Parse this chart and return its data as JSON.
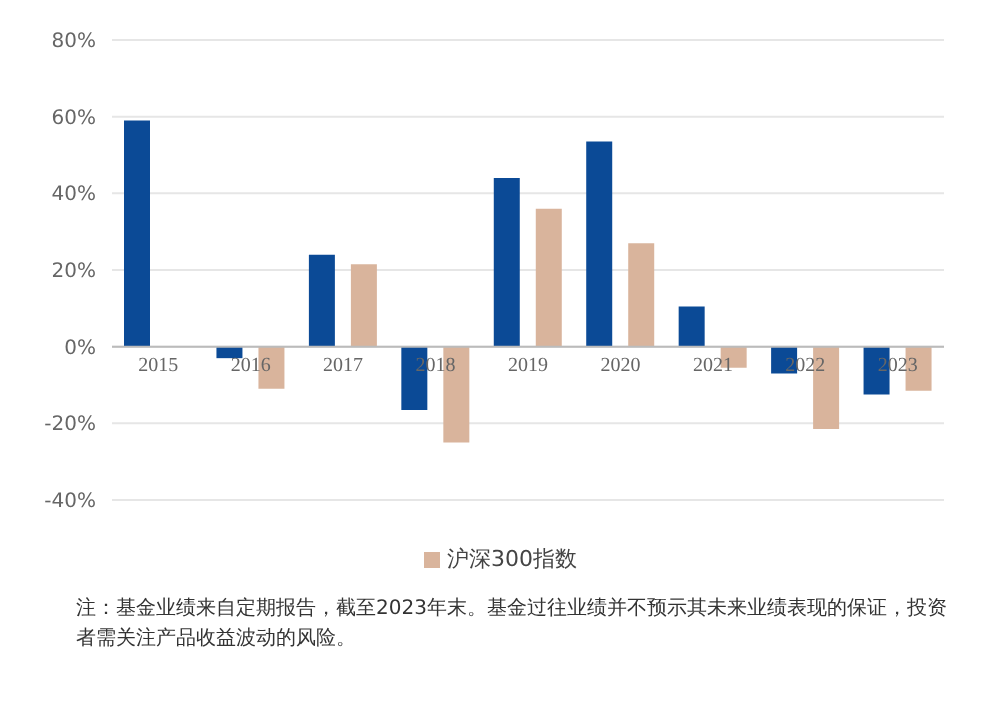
{
  "chart_data": {
    "type": "bar",
    "categories": [
      "2015",
      "2016",
      "2017",
      "2018",
      "2019",
      "2020",
      "2021",
      "2022",
      "2023"
    ],
    "series": [
      {
        "color": "#0b4a96",
        "values": [
          59,
          -3,
          24,
          -16.5,
          44,
          53.5,
          10.5,
          -7,
          -12.5
        ]
      },
      {
        "name": "沪深300指数",
        "color": "#d9b49c",
        "values": [
          null,
          -11,
          21.5,
          -25,
          36,
          27,
          -5.5,
          -21.5,
          -11.5
        ]
      }
    ],
    "ylim": [
      -40,
      80
    ],
    "yticks": [
      {
        "value": -40,
        "label": "-40%"
      },
      {
        "value": -20,
        "label": "-20%"
      },
      {
        "value": 0,
        "label": "0%"
      },
      {
        "value": 20,
        "label": "20%"
      },
      {
        "value": 40,
        "label": "40%"
      },
      {
        "value": 60,
        "label": "60%"
      },
      {
        "value": 80,
        "label": "80%"
      }
    ],
    "grid": "y",
    "legend": "bottom",
    "annotations": [
      "注：基金业绩来自定期报告，截至2023年末。基金过往业绩并不预示其未来业绩表现的保证，投资者需关注产品收益波动的风险。"
    ]
  }
}
